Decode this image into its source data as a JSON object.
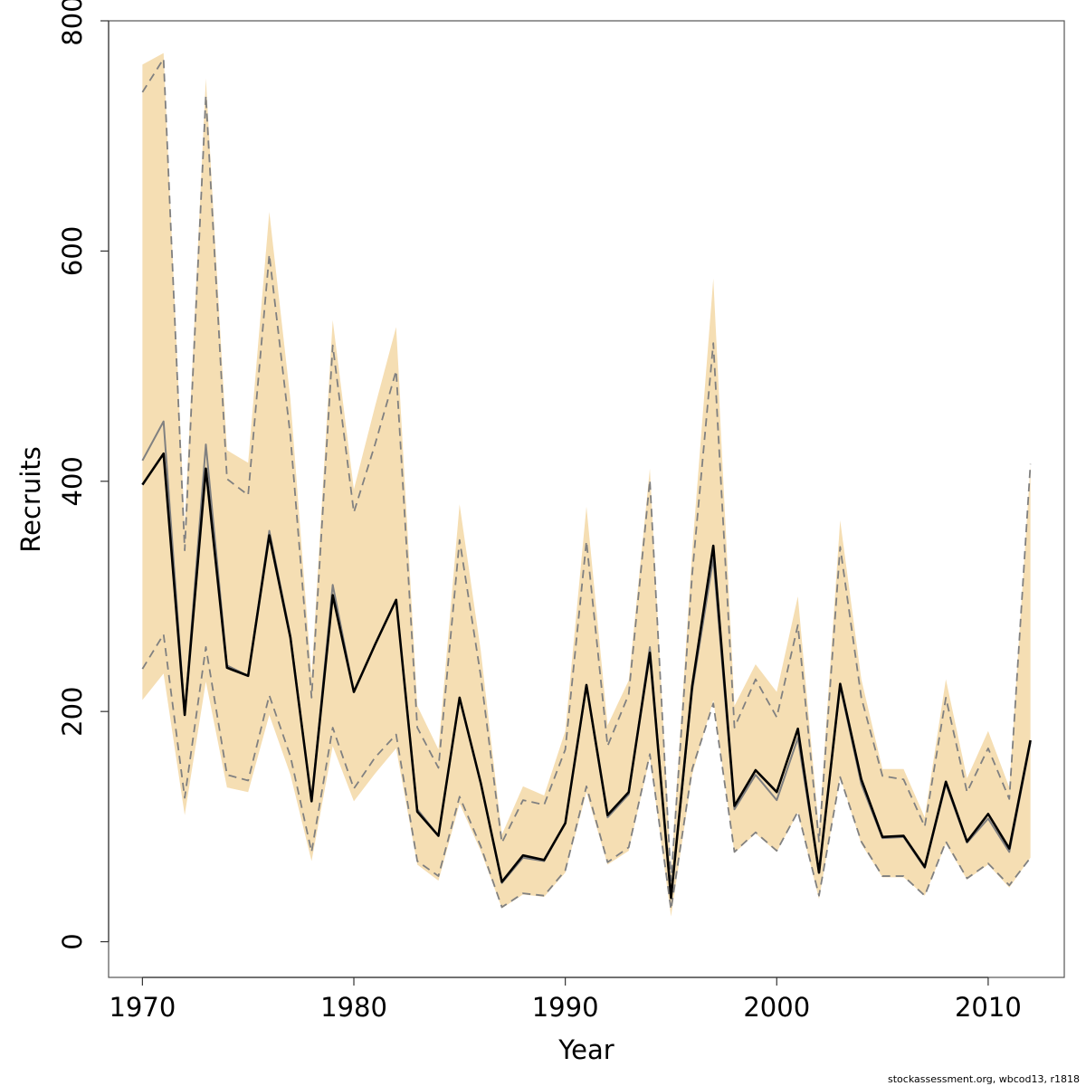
{
  "chart_data": {
    "type": "line",
    "title": "",
    "xlabel": "Year",
    "ylabel": "Recruits",
    "xlim": [
      1968.4,
      2013.6
    ],
    "ylim": [
      -31,
      800
    ],
    "x_ticks": [
      1970,
      1980,
      1990,
      2000,
      2010
    ],
    "y_ticks": [
      0,
      200,
      400,
      600,
      800
    ],
    "grid": false,
    "legend": "none",
    "x": [
      1970,
      1971,
      1972,
      1973,
      1974,
      1975,
      1976,
      1977,
      1978,
      1979,
      1980,
      1981,
      1982,
      1983,
      1984,
      1985,
      1986,
      1987,
      1988,
      1989,
      1990,
      1991,
      1992,
      1993,
      1994,
      1995,
      1996,
      1997,
      1998,
      1999,
      2000,
      2001,
      2002,
      2003,
      2004,
      2005,
      2006,
      2007,
      2008,
      2009,
      2010,
      2011,
      2012
    ],
    "series": [
      {
        "role": "estimate",
        "color": "#000000",
        "values": [
          397,
          424,
          197,
          411,
          238,
          231,
          353,
          264,
          122,
          301,
          217,
          258,
          297,
          113,
          92,
          212,
          138,
          52,
          75,
          71,
          103,
          223,
          110,
          130,
          251,
          38,
          222,
          344,
          118,
          149,
          130,
          185,
          60,
          224,
          141,
          91,
          92,
          65,
          139,
          87,
          111,
          81,
          175
        ]
      },
      {
        "role": "comparison-estimate",
        "color": "#808080",
        "values": [
          418,
          452,
          197,
          432,
          240,
          231,
          357,
          266,
          122,
          310,
          217,
          258,
          297,
          115,
          92,
          211,
          138,
          51,
          73,
          70,
          103,
          222,
          108,
          128,
          256,
          38,
          218,
          333,
          115,
          145,
          123,
          177,
          60,
          222,
          137,
          90,
          91,
          64,
          137,
          86,
          107,
          78,
          173
        ]
      },
      {
        "role": "comparison-lower-bound",
        "color": "#808080",
        "dashed": true,
        "values": [
          237,
          267,
          125,
          256,
          145,
          140,
          214,
          161,
          78,
          186,
          133,
          160,
          180,
          70,
          57,
          126,
          83,
          30,
          42,
          40,
          62,
          135,
          69,
          82,
          163,
          28,
          150,
          207,
          78,
          95,
          79,
          113,
          40,
          143,
          87,
          57,
          57,
          40,
          87,
          55,
          68,
          49,
          73
        ]
      },
      {
        "role": "comparison-upper-bound",
        "color": "#808080",
        "dashed": true,
        "values": [
          738,
          767,
          340,
          735,
          402,
          388,
          597,
          439,
          212,
          518,
          373,
          432,
          496,
          186,
          151,
          349,
          231,
          86,
          123,
          119,
          167,
          348,
          170,
          215,
          401,
          53,
          319,
          520,
          186,
          228,
          195,
          275,
          87,
          343,
          212,
          144,
          141,
          100,
          212,
          130,
          168,
          124,
          415
        ]
      },
      {
        "role": "confidence-band-lower",
        "color": "#f5deb3",
        "values": [
          210,
          233,
          110,
          226,
          134,
          130,
          197,
          145,
          70,
          170,
          122,
          146,
          168,
          67,
          53,
          120,
          79,
          29,
          41,
          39,
          60,
          130,
          67,
          79,
          160,
          22,
          145,
          210,
          77,
          94,
          78,
          112,
          37,
          143,
          85,
          56,
          56,
          40,
          85,
          54,
          67,
          47,
          73
        ]
      },
      {
        "role": "confidence-band-upper",
        "color": "#f5deb3",
        "values": [
          762,
          772,
          360,
          750,
          427,
          416,
          634,
          471,
          230,
          540,
          393,
          465,
          534,
          205,
          167,
          380,
          253,
          93,
          135,
          127,
          183,
          378,
          188,
          227,
          411,
          60,
          339,
          576,
          205,
          241,
          217,
          300,
          97,
          366,
          228,
          150,
          150,
          108,
          228,
          142,
          183,
          134,
          414
        ]
      }
    ],
    "footer_text": "stockassessment.org, wbcod13, r1818"
  }
}
